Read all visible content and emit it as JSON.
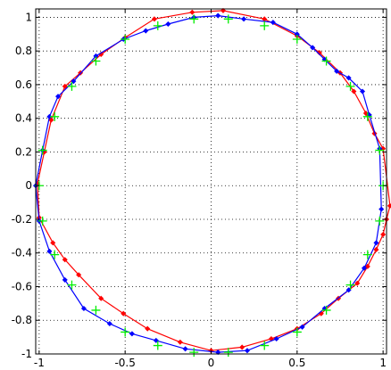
{
  "chart_data": {
    "type": "scatter",
    "title": "",
    "xlabel": "",
    "ylabel": "",
    "xlim": [
      -1.02,
      1.02
    ],
    "ylim": [
      -1.0,
      1.05
    ],
    "grid": true,
    "legend": "none",
    "x_ticks": [
      {
        "value": -1,
        "label": "-1"
      },
      {
        "value": -0.5,
        "label": "-0.5"
      },
      {
        "value": 0,
        "label": "0"
      },
      {
        "value": 0.5,
        "label": "0.5"
      },
      {
        "value": 1,
        "label": "1"
      }
    ],
    "y_ticks": [
      {
        "value": 1,
        "label": "1"
      },
      {
        "value": 0.8,
        "label": "0.8"
      },
      {
        "value": 0.6,
        "label": "0.6"
      },
      {
        "value": 0.4,
        "label": "0.4"
      },
      {
        "value": 0.2,
        "label": "0.2"
      },
      {
        "value": 0,
        "label": "0"
      },
      {
        "value": -0.2,
        "label": "-0.2"
      },
      {
        "value": -0.4,
        "label": "-0.4"
      },
      {
        "value": -0.6,
        "label": "-0.6"
      },
      {
        "value": -0.8,
        "label": "-0.8"
      },
      {
        "value": -1,
        "label": "-1"
      }
    ],
    "series": [
      {
        "color": "#ff0000",
        "line": true,
        "marker": "diamond",
        "points": [
          [
            0.07,
            1.04
          ],
          [
            0.31,
            0.99
          ],
          [
            0.5,
            0.89
          ],
          [
            0.63,
            0.79
          ],
          [
            0.75,
            0.67
          ],
          [
            0.83,
            0.56
          ],
          [
            0.9,
            0.43
          ],
          [
            0.95,
            0.31
          ],
          [
            1.0,
            0.22
          ],
          [
            -0.11,
            1.03
          ],
          [
            -0.33,
            0.99
          ],
          [
            -0.5,
            0.88
          ],
          [
            -0.64,
            0.78
          ],
          [
            -0.76,
            0.67
          ],
          [
            -0.85,
            0.59
          ],
          [
            -0.93,
            0.39
          ],
          [
            -0.97,
            0.2
          ],
          [
            -1.01,
            0.01
          ],
          [
            -1.0,
            -0.19
          ],
          [
            -0.92,
            -0.34
          ],
          [
            -0.85,
            -0.44
          ],
          [
            -0.77,
            -0.53
          ],
          [
            -0.64,
            -0.67
          ],
          [
            -0.51,
            -0.76
          ],
          [
            -0.37,
            -0.85
          ],
          [
            -0.18,
            -0.93
          ],
          [
            0.0,
            -0.98
          ],
          [
            0.18,
            -0.96
          ],
          [
            0.35,
            -0.91
          ],
          [
            0.5,
            -0.85
          ],
          [
            0.64,
            -0.76
          ],
          [
            0.74,
            -0.67
          ],
          [
            0.85,
            -0.58
          ],
          [
            0.91,
            -0.48
          ],
          [
            0.96,
            -0.38
          ],
          [
            1.0,
            -0.29
          ],
          [
            1.02,
            -0.2
          ],
          [
            1.04,
            -0.12
          ]
        ]
      },
      {
        "color": "#0000ff",
        "line": true,
        "marker": "diamond",
        "points": [
          [
            0.04,
            1.01
          ],
          [
            0.19,
            0.99
          ],
          [
            0.36,
            0.97
          ],
          [
            0.5,
            0.9
          ],
          [
            0.59,
            0.82
          ],
          [
            0.66,
            0.75
          ],
          [
            0.73,
            0.68
          ],
          [
            0.8,
            0.64
          ],
          [
            0.88,
            0.56
          ],
          [
            0.92,
            0.42
          ],
          [
            0.98,
            0.22
          ],
          [
            -0.1,
            1.0
          ],
          [
            -0.25,
            0.96
          ],
          [
            -0.38,
            0.92
          ],
          [
            -0.51,
            0.87
          ],
          [
            -0.67,
            0.77
          ],
          [
            -0.8,
            0.62
          ],
          [
            -0.89,
            0.53
          ],
          [
            -0.94,
            0.41
          ],
          [
            -0.98,
            0.21
          ],
          [
            -1.02,
            0.0
          ],
          [
            -1.0,
            -0.21
          ],
          [
            -0.94,
            -0.39
          ],
          [
            -0.85,
            -0.56
          ],
          [
            -0.74,
            -0.73
          ],
          [
            -0.59,
            -0.82
          ],
          [
            -0.46,
            -0.88
          ],
          [
            -0.32,
            -0.92
          ],
          [
            -0.15,
            -0.97
          ],
          [
            0.04,
            -0.99
          ],
          [
            0.21,
            -0.98
          ],
          [
            0.38,
            -0.91
          ],
          [
            0.53,
            -0.84
          ],
          [
            0.66,
            -0.73
          ],
          [
            0.8,
            -0.62
          ],
          [
            0.89,
            -0.49
          ],
          [
            0.96,
            -0.34
          ],
          [
            0.99,
            -0.14
          ]
        ]
      },
      {
        "color": "#00ee00",
        "line": false,
        "marker": "plus",
        "points": [
          [
            1.0,
            0.0
          ],
          [
            0.98,
            0.21
          ],
          [
            0.91,
            0.41
          ],
          [
            0.81,
            0.59
          ],
          [
            0.67,
            0.74
          ],
          [
            0.5,
            0.87
          ],
          [
            0.31,
            0.95
          ],
          [
            0.1,
            0.99
          ],
          [
            -0.1,
            0.99
          ],
          [
            -0.31,
            0.95
          ],
          [
            -0.5,
            0.87
          ],
          [
            -0.67,
            0.74
          ],
          [
            -0.81,
            0.59
          ],
          [
            -0.91,
            0.41
          ],
          [
            -0.98,
            0.21
          ],
          [
            -1.0,
            0.0
          ],
          [
            -0.98,
            -0.21
          ],
          [
            -0.91,
            -0.41
          ],
          [
            -0.81,
            -0.59
          ],
          [
            -0.67,
            -0.74
          ],
          [
            -0.5,
            -0.87
          ],
          [
            -0.31,
            -0.95
          ],
          [
            -0.1,
            -0.99
          ],
          [
            0.1,
            -0.99
          ],
          [
            0.31,
            -0.95
          ],
          [
            0.5,
            -0.87
          ],
          [
            0.67,
            -0.74
          ],
          [
            0.81,
            -0.59
          ],
          [
            0.91,
            -0.41
          ],
          [
            0.98,
            -0.21
          ]
        ]
      }
    ]
  }
}
